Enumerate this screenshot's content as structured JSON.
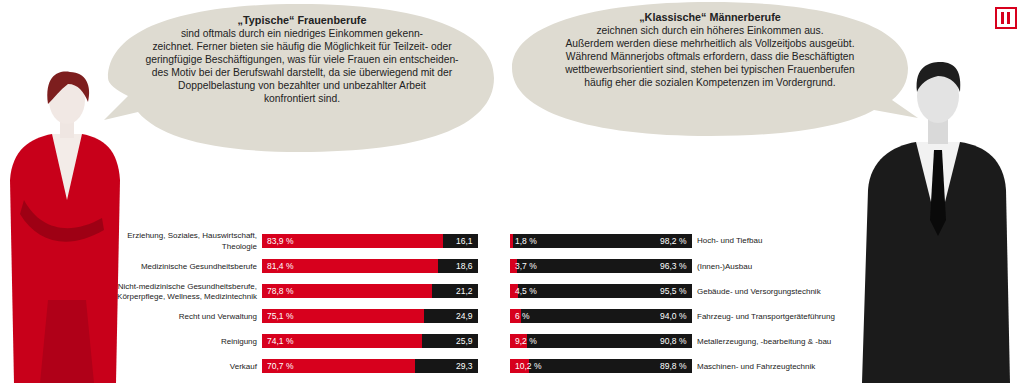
{
  "chart_data": [
    {
      "type": "bar",
      "title": "„Typische“ Frauenberufe",
      "subtitle": "sind oftmals durch ein niedriges Einkommen gekenn-\nzeichnet. Ferner bieten sie häufig die Möglichkeit für Teilzeit- oder\ngeringfügige Beschäftigungen, was für viele Frauen ein entscheiden-\ndes Motiv bei der Berufswahl darstellt, da sie überwiegend mit der\nDoppelbelastung von bezahlter und unbezahlter Arbeit\nkonfrontiert sind.",
      "categories": [
        "Erziehung, Soziales, Hauswirtschaft,\nTheologie",
        "Medizinische Gesundheitsberufe",
        "Nicht-medizinische Gesundheitsberufe,\nKörperpflege, Wellness, Medizintechnik",
        "Recht und Verwaltung",
        "Reinigung",
        "Verkauf"
      ],
      "series": [
        {
          "color": "#d7001d",
          "values": [
            83.9,
            81.4,
            78.8,
            75.1,
            74.1,
            70.7
          ],
          "value_labels": [
            "83,9 %",
            "81,4 %",
            "78,8 %",
            "75,1 %",
            "74,1 %",
            "70,7 %"
          ]
        },
        {
          "color": "#161616",
          "values": [
            16.1,
            18.6,
            21.2,
            24.9,
            25.9,
            29.3
          ],
          "value_labels": [
            "16,1",
            "18,6",
            "21,2",
            "24,9",
            "25,9",
            "29,3"
          ]
        }
      ],
      "xlim": [
        0,
        100
      ],
      "orientation": "horizontal",
      "stacked": true,
      "data_labels": true,
      "tick_labels": "y",
      "grid": false
    },
    {
      "type": "bar",
      "title": "„Klassische“ Männerberufe",
      "subtitle": "zeichnen sich durch ein höheres Einkommen aus.\nAußerdem werden diese mehrheitlich als Vollzeitjobs ausgeübt.\nWährend Männerjobs oftmals erfordern, dass die Beschäftigten\nwettbewerbsorientiert sind, stehen bei typischen Frauenberufen\nhäufig eher die sozialen Kompetenzen im Vordergrund.",
      "categories": [
        "Hoch- und Tiefbau",
        "(Innen-)Ausbau",
        "Gebäude- und Versorgungstechnik",
        "Fahrzeug- und Transportgeräteführung",
        "Metallerzeugung, -bearbeitung & -bau",
        "Maschinen- und Fahrzeugtechnik"
      ],
      "series": [
        {
          "color": "#d7001d",
          "values": [
            1.8,
            3.7,
            4.5,
            6,
            9.2,
            10.2
          ],
          "value_labels": [
            "1,8 %",
            "3,7 %",
            "4,5 %",
            "6 %",
            "9,2 %",
            "10,2 %"
          ]
        },
        {
          "color": "#161616",
          "values": [
            98.2,
            96.3,
            95.5,
            94.0,
            90.8,
            89.8
          ],
          "value_labels": [
            "98,2 %",
            "96,3 %",
            "95,5 %",
            "94,0 %",
            "90,8 %",
            "89,8 %"
          ]
        }
      ],
      "xlim": [
        0,
        100
      ],
      "orientation": "horizontal",
      "stacked": true,
      "data_labels": true,
      "tick_labels": "y",
      "grid": false
    }
  ]
}
